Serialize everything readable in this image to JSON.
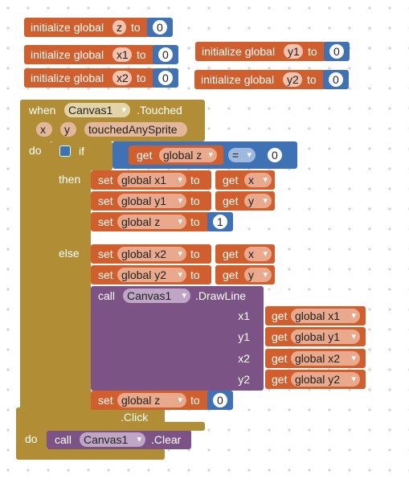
{
  "globals": [
    {
      "label": "initialize global",
      "name": "z",
      "to": "to",
      "value": 0
    },
    {
      "label": "initialize global",
      "name": "x1",
      "to": "to",
      "value": 0
    },
    {
      "label": "initialize global",
      "name": "y1",
      "to": "to",
      "value": 0
    },
    {
      "label": "initialize global",
      "name": "x2",
      "to": "to",
      "value": 0
    },
    {
      "label": "initialize global",
      "name": "y2",
      "to": "to",
      "value": 0
    }
  ],
  "touched_event": {
    "when": "when",
    "component": "Canvas1",
    "event": ".Touched",
    "params": [
      "x",
      "y",
      "touchedAnySprite"
    ],
    "do": "do",
    "if_block": {
      "if": "if",
      "condition": {
        "get": "get",
        "variable": "global z",
        "operator": "=",
        "value": 0
      },
      "then": "then",
      "then_statements": [
        {
          "set": "set",
          "variable": "global x1",
          "to": "to",
          "get": "get",
          "value": "x"
        },
        {
          "set": "set",
          "variable": "global y1",
          "to": "to",
          "get": "get",
          "value": "y"
        },
        {
          "set": "set",
          "variable": "global z",
          "to": "to",
          "number": 1
        }
      ],
      "else": "else",
      "else_statements": [
        {
          "set": "set",
          "variable": "global x2",
          "to": "to",
          "get": "get",
          "value": "x"
        },
        {
          "set": "set",
          "variable": "global y2",
          "to": "to",
          "get": "get",
          "value": "y"
        },
        {
          "call": "call",
          "component": "Canvas1",
          "method": ".DrawLine",
          "args": [
            {
              "name": "x1",
              "get": "get",
              "variable": "global x1"
            },
            {
              "name": "y1",
              "get": "get",
              "variable": "global y1"
            },
            {
              "name": "x2",
              "get": "get",
              "variable": "global x2"
            },
            {
              "name": "y2",
              "get": "get",
              "variable": "global y2"
            }
          ]
        },
        {
          "set": "set",
          "variable": "global z",
          "to": "to",
          "number": 0
        }
      ]
    }
  },
  "click_event": {
    "event": ".Click",
    "do": "do",
    "statement": {
      "call": "call",
      "component": "Canvas1",
      "method": ".Clear"
    }
  }
}
